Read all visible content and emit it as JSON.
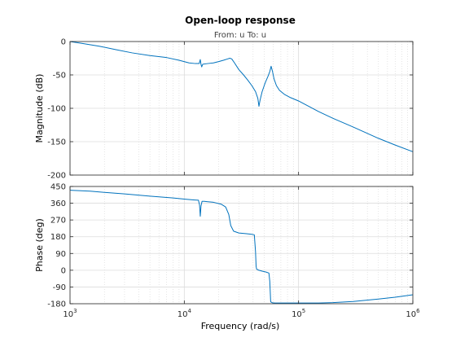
{
  "chart_data": {
    "type": "line",
    "title": "Open-loop response",
    "subtitle": "From: u  To: u",
    "xlabel": "Frequency  (rad/s)",
    "x_scale": "log",
    "xlim": [
      1000,
      1000000
    ],
    "x_ticks": [
      1000,
      10000,
      100000,
      1000000
    ],
    "x_tick_labels": [
      {
        "base": "10",
        "exp": "3"
      },
      {
        "base": "10",
        "exp": "4"
      },
      {
        "base": "10",
        "exp": "5"
      },
      {
        "base": "10",
        "exp": "6"
      }
    ],
    "grid": true,
    "line_color": "#0072bd",
    "panels": [
      {
        "ylabel": "Magnitude (dB)",
        "ylim": [
          -200,
          0
        ],
        "y_ticks": [
          -200,
          -150,
          -100,
          -50,
          0
        ],
        "y_tick_labels": [
          "-200",
          "-150",
          "-100",
          "-50",
          "0"
        ],
        "series": [
          {
            "x": [
              1000,
              1300,
              1800,
              2500,
              3500,
              5000,
              7000,
              9000,
              11000,
              12500,
              13500,
              13800,
              14000,
              14200,
              14500,
              16000,
              18000,
              20000,
              22000,
              24000,
              25000,
              26000,
              27500,
              30000,
              33000,
              36000,
              39000,
              42000,
              44000,
              45000,
              46000,
              48000,
              51000,
              54000,
              56000,
              57500,
              59000,
              61000,
              64000,
              68000,
              75000,
              85000,
              100000,
              150000,
              200000,
              300000,
              500000,
              700000,
              1000000
            ],
            "y": [
              0,
              -3,
              -7,
              -12,
              -17,
              -21,
              -24,
              -28,
              -32,
              -33,
              -33,
              -27,
              -34,
              -38,
              -34,
              -33,
              -32,
              -30,
              -28,
              -26,
              -25,
              -26,
              -32,
              -42,
              -50,
              -58,
              -66,
              -75,
              -85,
              -97,
              -88,
              -75,
              -62,
              -52,
              -45,
              -37,
              -44,
              -56,
              -66,
              -73,
              -79,
              -84,
              -89,
              -105,
              -115,
              -128,
              -145,
              -155,
              -165
            ]
          }
        ]
      },
      {
        "ylabel": "Phase (deg)",
        "ylim": [
          -180,
          450
        ],
        "y_ticks": [
          -180,
          -90,
          0,
          90,
          180,
          270,
          360,
          450
        ],
        "y_tick_labels": [
          "-180",
          "-90",
          "0",
          "90",
          "180",
          "270",
          "360",
          "450"
        ],
        "series": [
          {
            "x": [
              1000,
              1500,
              2000,
              3000,
              5000,
              8000,
              10000,
              12000,
              13300,
              13600,
              13800,
              14000,
              14300,
              15000,
              18000,
              21000,
              23000,
              24500,
              25500,
              27000,
              30000,
              35000,
              39000,
              41000,
              42000,
              42500,
              43000,
              45000,
              48000,
              52000,
              55000,
              56000,
              57000,
              59000,
              62000,
              70000,
              100000,
              150000,
              200000,
              300000,
              500000,
              700000,
              1000000
            ],
            "y": [
              430,
              425,
              418,
              410,
              398,
              388,
              382,
              378,
              376,
              350,
              290,
              345,
              370,
              370,
              365,
              355,
              340,
              300,
              240,
              210,
              200,
              196,
              193,
              190,
              100,
              20,
              5,
              0,
              -5,
              -10,
              -15,
              -60,
              -170,
              -175,
              -176,
              -176,
              -176,
              -176,
              -174,
              -168,
              -155,
              -145,
              -132
            ]
          }
        ]
      }
    ]
  }
}
